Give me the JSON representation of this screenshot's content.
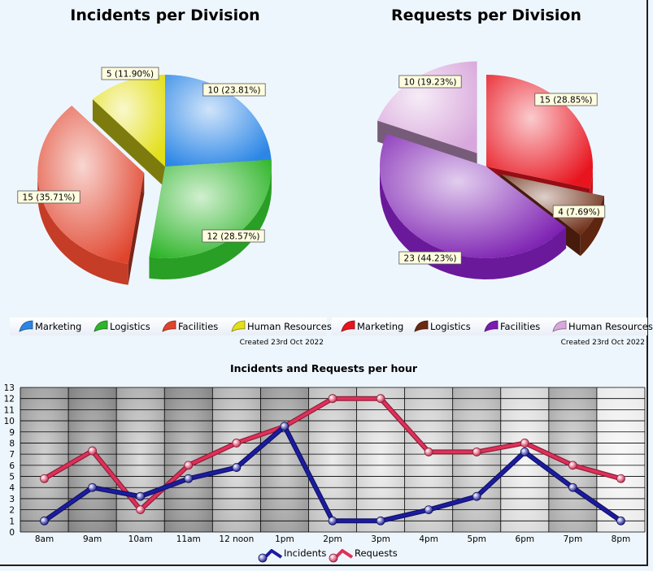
{
  "chart_data": [
    {
      "type": "pie",
      "title": "Incidents per Division",
      "slices": [
        {
          "name": "Marketing",
          "value": 10,
          "label": "10 (23.81%)",
          "color": "#2b86e6",
          "exploded": false
        },
        {
          "name": "Logistics",
          "value": 12,
          "label": "12 (28.57%)",
          "color": "#2fb52a",
          "exploded": false
        },
        {
          "name": "Facilities",
          "value": 15,
          "label": "15 (35.71%)",
          "color": "#e0442c",
          "exploded": true
        },
        {
          "name": "Human Resources",
          "value": 5,
          "label": "5 (11.90%)",
          "color": "#e3df19",
          "exploded": false
        }
      ],
      "created": "Created 23rd Oct 2022"
    },
    {
      "type": "pie",
      "title": "Requests per Division",
      "slices": [
        {
          "name": "Marketing",
          "value": 15,
          "label": "15 (28.85%)",
          "color": "#e8141e",
          "exploded": false
        },
        {
          "name": "Logistics",
          "value": 4,
          "label": "4 (7.69%)",
          "color": "#6b2a12",
          "exploded": true
        },
        {
          "name": "Facilities",
          "value": 23,
          "label": "23 (44.23%)",
          "color": "#7a1cb0",
          "exploded": false
        },
        {
          "name": "Human Resources",
          "value": 10,
          "label": "10 (19.23%)",
          "color": "#d8a8dc",
          "exploded": true
        }
      ],
      "created": "Created 23rd Oct 2022"
    },
    {
      "type": "line",
      "title": "Incidents and Requests per hour",
      "categories": [
        "8am",
        "9am",
        "10am",
        "11am",
        "12 noon",
        "1pm",
        "2pm",
        "3pm",
        "4pm",
        "5pm",
        "6pm",
        "7pm",
        "8pm"
      ],
      "series": [
        {
          "name": "Incidents",
          "values": [
            1,
            4,
            3.2,
            4.8,
            5.8,
            9.5,
            1,
            1,
            2,
            3.2,
            7.2,
            4,
            1
          ],
          "color": "#1c1ca0"
        },
        {
          "name": "Requests",
          "values": [
            4.8,
            7.3,
            2,
            6,
            8,
            9.5,
            12,
            12,
            7.2,
            7.2,
            8,
            6,
            4.8
          ],
          "color": "#e0305a"
        }
      ],
      "ylim": [
        0,
        13
      ],
      "yticks": [
        0,
        1,
        2,
        3,
        4,
        5,
        6,
        7,
        8,
        9,
        10,
        11,
        12,
        13
      ],
      "grid": true,
      "legend_position": "bottom"
    }
  ]
}
